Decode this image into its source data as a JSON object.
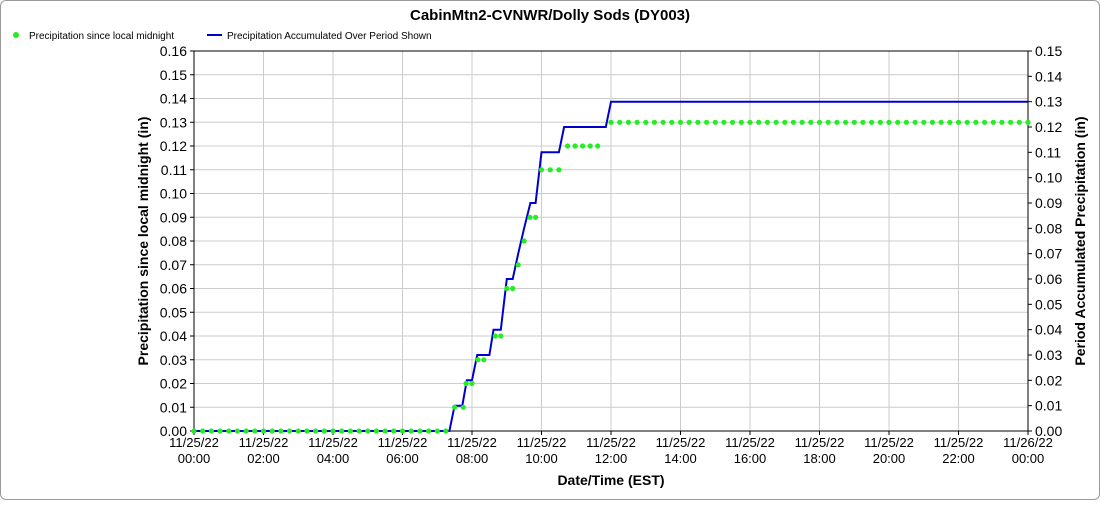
{
  "chart_data": {
    "type": "line",
    "title": "CabinMtn2-CVNWR/Dolly Sods (DY003)",
    "xlabel": "Date/Time (EST)",
    "ylabel": "Precipitation since local midnight (in)",
    "y2label": "Period Accumulated Precipitation (in)",
    "xlim_hours": [
      0,
      24
    ],
    "ylim": [
      0,
      0.16
    ],
    "y2lim": [
      0,
      0.15
    ],
    "yticks": [
      "0.00",
      "0.01",
      "0.02",
      "0.03",
      "0.04",
      "0.05",
      "0.06",
      "0.07",
      "0.08",
      "0.09",
      "0.10",
      "0.11",
      "0.12",
      "0.13",
      "0.14",
      "0.15",
      "0.16"
    ],
    "y2ticks": [
      "0.00",
      "0.01",
      "0.02",
      "0.03",
      "0.04",
      "0.05",
      "0.06",
      "0.07",
      "0.08",
      "0.09",
      "0.10",
      "0.11",
      "0.12",
      "0.13",
      "0.14",
      "0.15"
    ],
    "xticks": [
      {
        "hour": 0,
        "date": "11/25/22",
        "time": "00:00"
      },
      {
        "hour": 2,
        "date": "11/25/22",
        "time": "02:00"
      },
      {
        "hour": 4,
        "date": "11/25/22",
        "time": "04:00"
      },
      {
        "hour": 6,
        "date": "11/25/22",
        "time": "06:00"
      },
      {
        "hour": 8,
        "date": "11/25/22",
        "time": "08:00"
      },
      {
        "hour": 10,
        "date": "11/25/22",
        "time": "10:00"
      },
      {
        "hour": 12,
        "date": "11/25/22",
        "time": "12:00"
      },
      {
        "hour": 14,
        "date": "11/25/22",
        "time": "14:00"
      },
      {
        "hour": 16,
        "date": "11/25/22",
        "time": "16:00"
      },
      {
        "hour": 18,
        "date": "11/25/22",
        "time": "18:00"
      },
      {
        "hour": 20,
        "date": "11/25/22",
        "time": "20:00"
      },
      {
        "hour": 22,
        "date": "11/25/22",
        "time": "22:00"
      },
      {
        "hour": 24,
        "date": "11/26/22",
        "time": "00:00"
      }
    ],
    "grid": true,
    "legend_position": "top-left",
    "series": [
      {
        "name": "Precipitation since local midnight",
        "style": "points",
        "axis": "left",
        "color": "#22ee22",
        "segments": [
          {
            "from": 0,
            "to": 7.25,
            "step": 0.25,
            "y": 0
          },
          {
            "from": 7.5,
            "to": 7.75,
            "step": 0.25,
            "y": 0.01
          },
          {
            "from": 7.83,
            "to": 8.0,
            "step": 0.17,
            "y": 0.02
          },
          {
            "from": 8.17,
            "to": 8.5,
            "step": 0.17,
            "y": 0.03
          },
          {
            "from": 8.67,
            "to": 8.83,
            "step": 0.16,
            "y": 0.04
          },
          {
            "from": 9.0,
            "to": 9.17,
            "step": 0.17,
            "y": 0.06
          },
          {
            "from": 9.33,
            "to": 9.33,
            "step": 0.25,
            "y": 0.07
          },
          {
            "from": 9.5,
            "to": 9.5,
            "step": 0.25,
            "y": 0.08
          },
          {
            "from": 9.67,
            "to": 9.83,
            "step": 0.16,
            "y": 0.09
          },
          {
            "from": 10.0,
            "to": 10.5,
            "step": 0.25,
            "y": 0.11
          },
          {
            "from": 10.75,
            "to": 11.83,
            "step": 0.2167,
            "y": 0.12
          },
          {
            "from": 12.0,
            "to": 24.0,
            "step": 0.25,
            "y": 0.13
          }
        ]
      },
      {
        "name": "Precipitation Accumulated Over Period Shown",
        "style": "line",
        "axis": "right",
        "color": "#0000cc",
        "points": [
          [
            0,
            0
          ],
          [
            7.35,
            0
          ],
          [
            7.5,
            0.01
          ],
          [
            7.72,
            0.01
          ],
          [
            7.85,
            0.02
          ],
          [
            8.0,
            0.02
          ],
          [
            8.15,
            0.03
          ],
          [
            8.5,
            0.03
          ],
          [
            8.62,
            0.04
          ],
          [
            8.83,
            0.04
          ],
          [
            9.0,
            0.06
          ],
          [
            9.17,
            0.06
          ],
          [
            9.33,
            0.07
          ],
          [
            9.5,
            0.08
          ],
          [
            9.68,
            0.09
          ],
          [
            9.83,
            0.09
          ],
          [
            10.0,
            0.11
          ],
          [
            10.5,
            0.11
          ],
          [
            10.65,
            0.12
          ],
          [
            11.85,
            0.12
          ],
          [
            12.0,
            0.13
          ],
          [
            24.0,
            0.13
          ]
        ]
      }
    ]
  }
}
